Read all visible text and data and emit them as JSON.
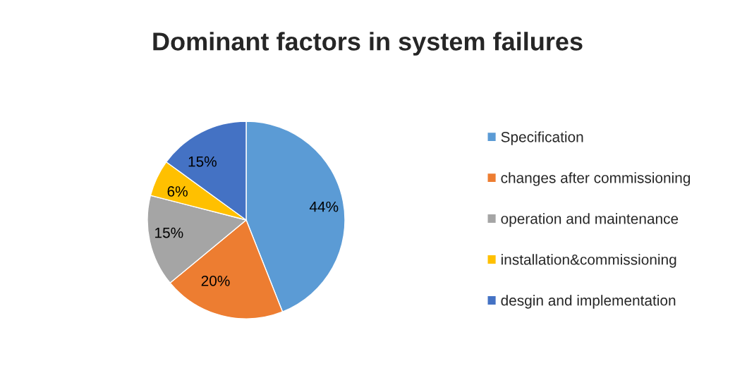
{
  "chart_data": {
    "type": "pie",
    "title": "Dominant factors in system failures",
    "categories": [
      "Specification",
      "changes after commissioning",
      "operation and maintenance",
      "installation&commissioning",
      "desgin and implementation"
    ],
    "values": [
      44,
      20,
      15,
      6,
      15
    ],
    "value_labels": [
      "44%",
      "20%",
      "15%",
      "6%",
      "15%"
    ],
    "colors": [
      "#5b9bd5",
      "#ed7d31",
      "#a5a5a5",
      "#ffc000",
      "#4472c4"
    ],
    "legend": "right"
  }
}
